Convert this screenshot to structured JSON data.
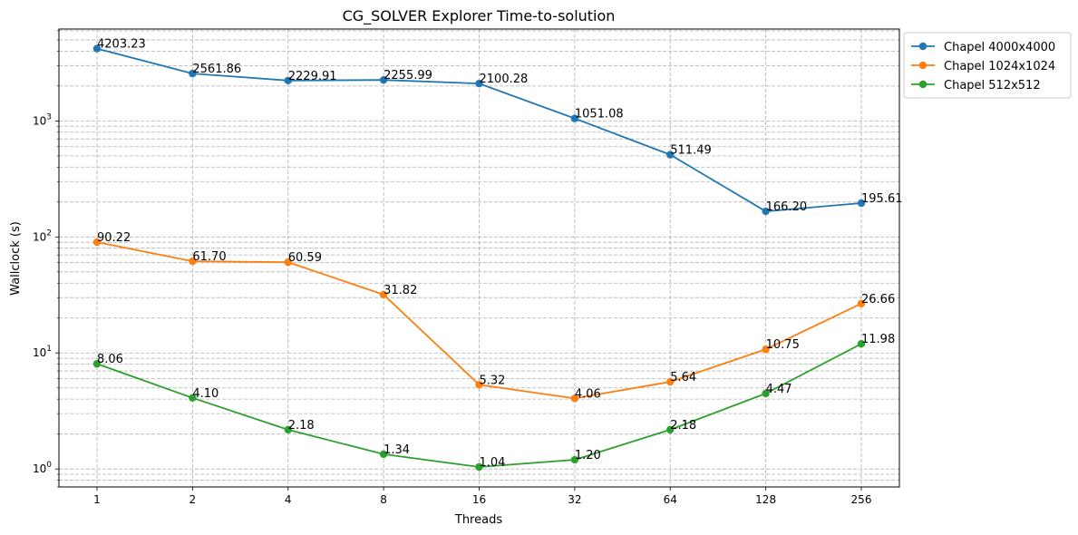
{
  "chart_data": {
    "type": "line",
    "title": "CG_SOLVER Explorer Time-to-solution",
    "xlabel": "Threads",
    "ylabel": "Wallclock (s)",
    "yscale": "log",
    "ylim": [
      0.7,
      6200
    ],
    "grid": true,
    "legend_position": "outside-top-right",
    "categories": [
      "1",
      "2",
      "4",
      "8",
      "16",
      "32",
      "64",
      "128",
      "256"
    ],
    "y_ticks": [
      {
        "value": 1,
        "base": "10",
        "exp": "0"
      },
      {
        "value": 10,
        "base": "10",
        "exp": "1"
      },
      {
        "value": 100,
        "base": "10",
        "exp": "2"
      },
      {
        "value": 1000,
        "base": "10",
        "exp": "3"
      }
    ],
    "series": [
      {
        "name": "Chapel 4000x4000",
        "color": "#1f77b4",
        "values": [
          4203.23,
          2561.86,
          2229.91,
          2255.99,
          2100.28,
          1051.08,
          511.49,
          166.2,
          195.61
        ],
        "labels": [
          "4203.23",
          "2561.86",
          "2229.91",
          "2255.99",
          "2100.28",
          "1051.08",
          "511.49",
          "166.20",
          "195.61"
        ]
      },
      {
        "name": "Chapel 1024x1024",
        "color": "#ff7f0e",
        "values": [
          90.22,
          61.7,
          60.59,
          31.82,
          5.32,
          4.06,
          5.64,
          10.75,
          26.66
        ],
        "labels": [
          "90.22",
          "61.70",
          "60.59",
          "31.82",
          "5.32",
          "4.06",
          "5.64",
          "10.75",
          "26.66"
        ]
      },
      {
        "name": "Chapel 512x512",
        "color": "#2ca02c",
        "values": [
          8.06,
          4.1,
          2.18,
          1.34,
          1.04,
          1.2,
          2.18,
          4.47,
          11.98
        ],
        "labels": [
          "8.06",
          "4.10",
          "2.18",
          "1.34",
          "1.04",
          "1.20",
          "2.18",
          "4.47",
          "11.98"
        ]
      }
    ]
  }
}
